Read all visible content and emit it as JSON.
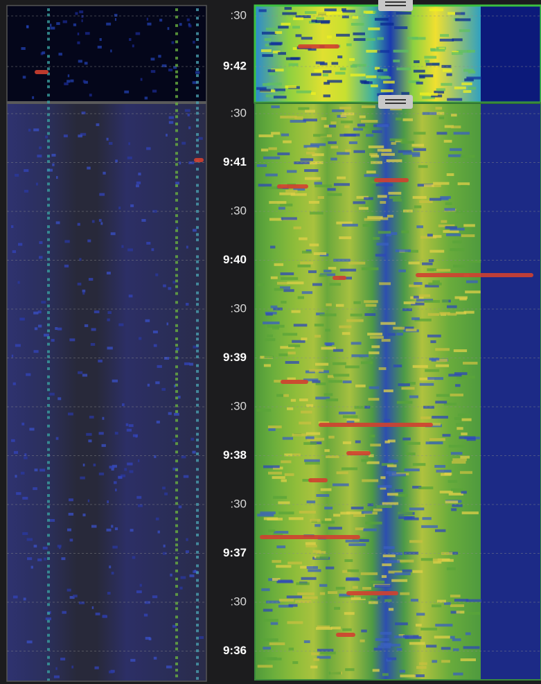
{
  "top_panel": {
    "time_labels": [
      ":30",
      "9:42"
    ]
  },
  "main_panel": {
    "time_labels": [
      ":30",
      "9:41",
      ":30",
      "9:40",
      ":30",
      "9:39",
      ":30",
      "9:38",
      ":30",
      "9:37",
      ":30",
      "9:36"
    ]
  }
}
